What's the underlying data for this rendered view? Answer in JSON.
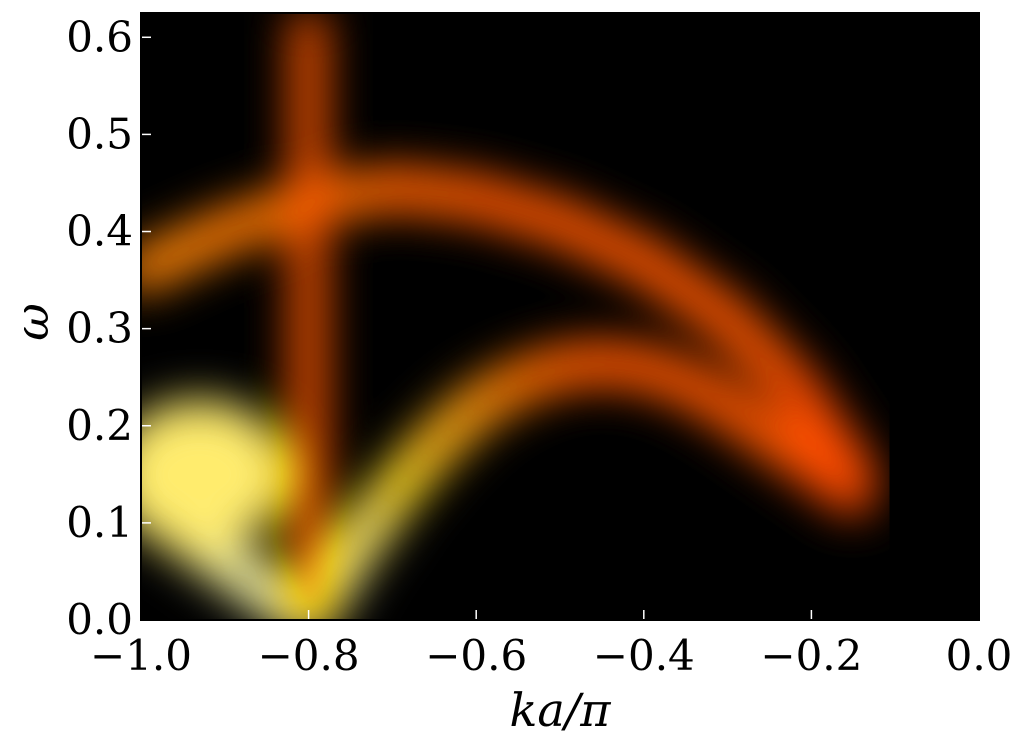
{
  "chart_data": {
    "type": "heatmap",
    "title": "",
    "xlabel": "ka/π",
    "ylabel": "ω",
    "xlim": [
      -1.0,
      0.0
    ],
    "ylim": [
      0.0,
      0.625
    ],
    "x_ticks": [
      -1.0,
      -0.8,
      -0.6,
      -0.4,
      -0.2,
      0.0
    ],
    "x_tick_labels": [
      "−1.0",
      "−0.8",
      "−0.6",
      "−0.4",
      "−0.2",
      "0.0"
    ],
    "y_ticks": [
      0.0,
      0.1,
      0.2,
      0.3,
      0.4,
      0.5,
      0.6
    ],
    "y_tick_labels": [
      "0.0",
      "0.1",
      "0.2",
      "0.3",
      "0.4",
      "0.5",
      "0.6"
    ],
    "colormap": "hot",
    "colors": {
      "low": "#000000",
      "mid": "#ff2000",
      "high": "#ffff80",
      "background": "#0b0000"
    },
    "grid": false,
    "legend": "none",
    "features": [
      {
        "name": "lower band",
        "points": [
          [
            -1.0,
            0.12
          ],
          [
            -0.95,
            0.09
          ],
          [
            -0.9,
            0.06
          ],
          [
            -0.85,
            0.03
          ],
          [
            -0.8,
            0.0
          ],
          [
            -0.75,
            0.07
          ],
          [
            -0.7,
            0.13
          ],
          [
            -0.65,
            0.18
          ],
          [
            -0.6,
            0.22
          ],
          [
            -0.55,
            0.245
          ],
          [
            -0.5,
            0.26
          ],
          [
            -0.45,
            0.265
          ],
          [
            -0.4,
            0.26
          ],
          [
            -0.35,
            0.245
          ],
          [
            -0.3,
            0.22
          ],
          [
            -0.25,
            0.19
          ],
          [
            -0.2,
            0.16
          ],
          [
            -0.15,
            0.13
          ]
        ],
        "intensity": [
          1.0,
          0.95,
          0.95,
          1.0,
          1.0,
          0.95,
          0.85,
          0.75,
          0.7,
          0.62,
          0.58,
          0.55,
          0.55,
          0.55,
          0.55,
          0.55,
          0.55,
          0.5
        ]
      },
      {
        "name": "upper band",
        "points": [
          [
            -1.0,
            0.36
          ],
          [
            -0.9,
            0.4
          ],
          [
            -0.8,
            0.43
          ],
          [
            -0.7,
            0.445
          ],
          [
            -0.6,
            0.435
          ],
          [
            -0.5,
            0.41
          ],
          [
            -0.4,
            0.37
          ],
          [
            -0.3,
            0.31
          ],
          [
            -0.22,
            0.24
          ],
          [
            -0.15,
            0.15
          ]
        ],
        "intensity": [
          0.65,
          0.62,
          0.6,
          0.58,
          0.55,
          0.55,
          0.55,
          0.55,
          0.55,
          0.5
        ]
      },
      {
        "name": "vertical streak",
        "k": -0.8,
        "omega_range": [
          0.0,
          0.625
        ],
        "intensity": 0.55
      },
      {
        "name": "low-k blob",
        "center": [
          -0.93,
          0.15
        ],
        "intensity": 0.9
      }
    ]
  }
}
